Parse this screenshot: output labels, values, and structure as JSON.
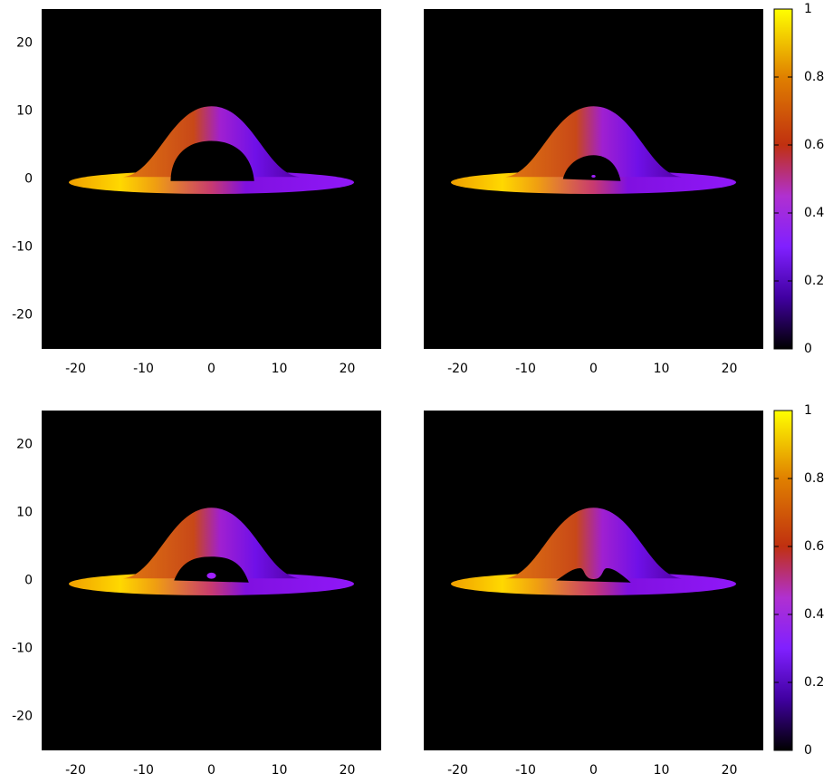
{
  "chart_data": [
    {
      "type": "image",
      "xlim": [
        -25,
        25
      ],
      "ylim": [
        -25,
        25
      ],
      "xticks": [
        -20,
        -10,
        0,
        10,
        20
      ],
      "yticks": [
        -20,
        -10,
        0,
        10,
        20
      ]
    },
    {
      "type": "image",
      "xlim": [
        -25,
        25
      ],
      "ylim": [
        -25,
        25
      ],
      "xticks": [
        -20,
        -10,
        0,
        10,
        20
      ],
      "colorbar": {
        "clim": [
          0,
          1
        ],
        "ticks": [
          0,
          0.2,
          0.4,
          0.6,
          0.8,
          1
        ]
      }
    },
    {
      "type": "image",
      "xlim": [
        -25,
        25
      ],
      "ylim": [
        -25,
        25
      ],
      "xticks": [
        -20,
        -10,
        0,
        10,
        20
      ],
      "yticks": [
        -20,
        -10,
        0,
        10,
        20
      ]
    },
    {
      "type": "image",
      "xlim": [
        -25,
        25
      ],
      "ylim": [
        -25,
        25
      ],
      "xticks": [
        -20,
        -10,
        0,
        10,
        20
      ],
      "colorbar": {
        "clim": [
          0,
          1
        ],
        "ticks": [
          0,
          0.2,
          0.4,
          0.6,
          0.8,
          1
        ]
      }
    }
  ]
}
